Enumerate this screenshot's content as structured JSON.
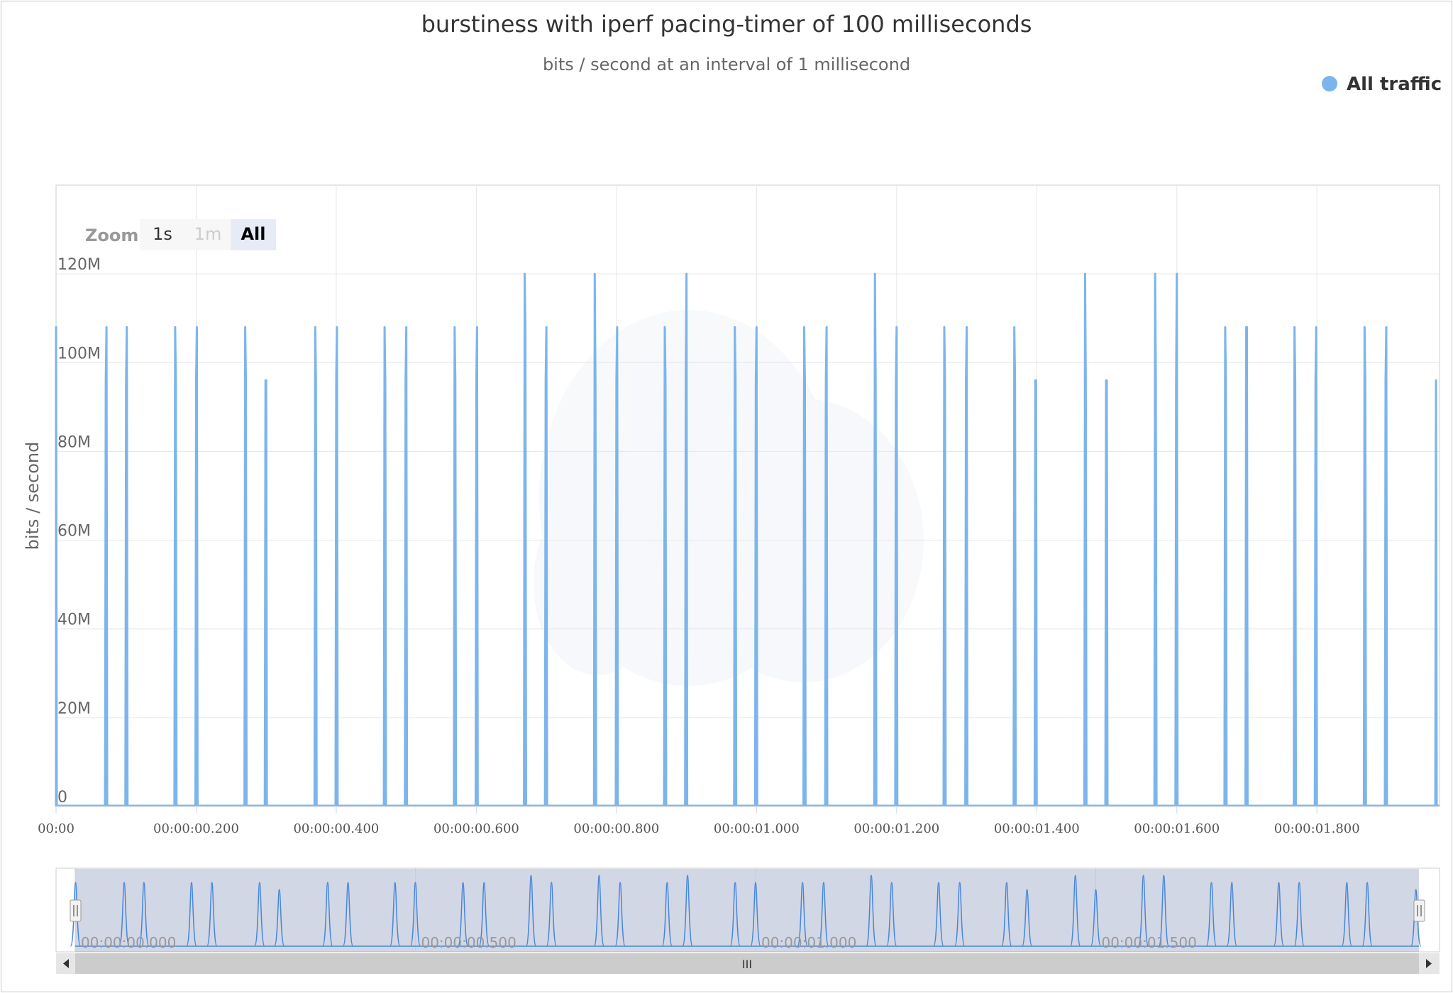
{
  "chart_data": {
    "type": "line",
    "title": "burstiness with iperf pacing-timer of 100 milliseconds",
    "subtitle": "bits / second at an interval of 1 millisecond",
    "ylabel": "bits / second",
    "xlim": [
      0,
      1.975
    ],
    "ylim": [
      0,
      140000000
    ],
    "grid": true,
    "legend_position": "top-right",
    "y_ticks": [
      {
        "value": 0,
        "label": "0"
      },
      {
        "value": 20000000,
        "label": "20M"
      },
      {
        "value": 40000000,
        "label": "40M"
      },
      {
        "value": 60000000,
        "label": "60M"
      },
      {
        "value": 80000000,
        "label": "80M"
      },
      {
        "value": 100000000,
        "label": "100M"
      },
      {
        "value": 120000000,
        "label": "120M"
      }
    ],
    "x_ticks": [
      {
        "value": 0,
        "label": "00:00"
      },
      {
        "value": 0.2,
        "label": "00:00:00.200"
      },
      {
        "value": 0.4,
        "label": "00:00:00.400"
      },
      {
        "value": 0.6,
        "label": "00:00:00.600"
      },
      {
        "value": 0.8,
        "label": "00:00:00.800"
      },
      {
        "value": 1.0,
        "label": "00:00:01.000"
      },
      {
        "value": 1.2,
        "label": "00:00:01.200"
      },
      {
        "value": 1.4,
        "label": "00:00:01.400"
      },
      {
        "value": 1.6,
        "label": "00:00:01.600"
      },
      {
        "value": 1.8,
        "label": "00:00:01.800"
      }
    ],
    "series": [
      {
        "name": "All traffic",
        "color": "#7cb5ec",
        "bursts": [
          {
            "start": 0.0,
            "peaks": [
              108000000
            ]
          },
          {
            "start": 0.071,
            "peaks": [
              96000000,
              108000000
            ]
          },
          {
            "start": 0.1,
            "peaks": [
              96000000,
              108000000
            ]
          },
          {
            "start": 0.17,
            "peaks": [
              108000000,
              96000000
            ]
          },
          {
            "start": 0.2,
            "peaks": [
              96000000,
              108000000
            ]
          },
          {
            "start": 0.27,
            "peaks": [
              108000000,
              96000000
            ]
          },
          {
            "start": 0.299,
            "peaks": [
              96000000,
              96000000
            ]
          },
          {
            "start": 0.37,
            "peaks": [
              108000000,
              96000000
            ]
          },
          {
            "start": 0.4,
            "peaks": [
              96000000,
              108000000
            ]
          },
          {
            "start": 0.469,
            "peaks": [
              108000000,
              96000000
            ]
          },
          {
            "start": 0.499,
            "peaks": [
              96000000,
              108000000
            ]
          },
          {
            "start": 0.569,
            "peaks": [
              108000000,
              96000000
            ]
          },
          {
            "start": 0.6,
            "peaks": [
              96000000,
              108000000
            ]
          },
          {
            "start": 0.669,
            "peaks": [
              120000000,
              108000000
            ]
          },
          {
            "start": 0.699,
            "peaks": [
              96000000,
              108000000
            ]
          },
          {
            "start": 0.769,
            "peaks": [
              120000000,
              96000000
            ]
          },
          {
            "start": 0.8,
            "peaks": [
              96000000,
              108000000
            ]
          },
          {
            "start": 0.869,
            "peaks": [
              108000000,
              96000000
            ]
          },
          {
            "start": 0.899,
            "peaks": [
              96000000,
              120000000
            ]
          },
          {
            "start": 0.969,
            "peaks": [
              108000000,
              96000000
            ]
          },
          {
            "start": 0.999,
            "peaks": [
              96000000,
              108000000
            ]
          },
          {
            "start": 1.068,
            "peaks": [
              108000000,
              96000000
            ]
          },
          {
            "start": 1.099,
            "peaks": [
              96000000,
              108000000
            ]
          },
          {
            "start": 1.169,
            "peaks": [
              120000000,
              96000000
            ]
          },
          {
            "start": 1.199,
            "peaks": [
              96000000,
              108000000
            ]
          },
          {
            "start": 1.268,
            "peaks": [
              108000000,
              96000000
            ]
          },
          {
            "start": 1.299,
            "peaks": [
              96000000,
              108000000
            ]
          },
          {
            "start": 1.368,
            "peaks": [
              108000000,
              96000000
            ]
          },
          {
            "start": 1.398,
            "peaks": [
              96000000,
              96000000
            ]
          },
          {
            "start": 1.469,
            "peaks": [
              120000000,
              96000000
            ]
          },
          {
            "start": 1.499,
            "peaks": [
              96000000,
              96000000
            ]
          },
          {
            "start": 1.569,
            "peaks": [
              120000000,
              96000000
            ]
          },
          {
            "start": 1.599,
            "peaks": [
              96000000,
              120000000
            ]
          },
          {
            "start": 1.669,
            "peaks": [
              108000000,
              96000000
            ]
          },
          {
            "start": 1.699,
            "peaks": [
              108000000,
              108000000
            ]
          },
          {
            "start": 1.768,
            "peaks": [
              108000000,
              96000000
            ]
          },
          {
            "start": 1.798,
            "peaks": [
              96000000,
              108000000
            ]
          },
          {
            "start": 1.868,
            "peaks": [
              108000000,
              96000000
            ]
          },
          {
            "start": 1.898,
            "peaks": [
              96000000,
              108000000
            ]
          },
          {
            "start": 1.97,
            "peaks": [
              96000000
            ]
          }
        ]
      }
    ]
  },
  "range_selector": {
    "label": "Zoom",
    "buttons": [
      {
        "label": "1s",
        "state": "normal"
      },
      {
        "label": "1m",
        "state": "disabled"
      },
      {
        "label": "All",
        "state": "selected"
      }
    ]
  },
  "navigator": {
    "ticks": [
      {
        "value": 0.0,
        "label": "00:00:00.000"
      },
      {
        "value": 0.5,
        "label": "00:00:00.500"
      },
      {
        "value": 1.0,
        "label": "00:00:01.000"
      },
      {
        "value": 1.5,
        "label": "00:00:01.500"
      }
    ],
    "scrollbar_grip": "III"
  }
}
